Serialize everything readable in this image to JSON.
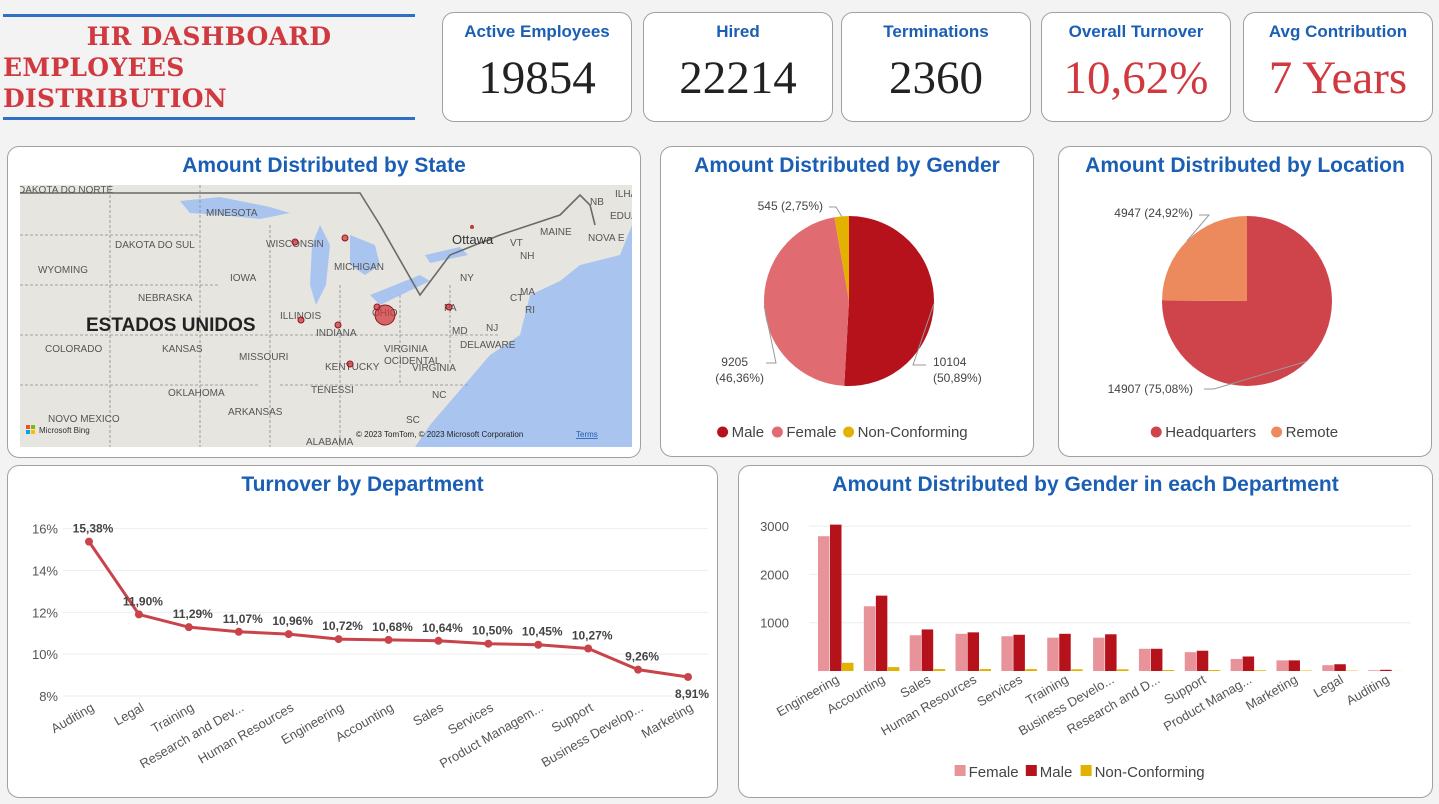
{
  "header": {
    "line1": "HR DASHBOARD",
    "line2": "EMPLOYEES DISTRIBUTION"
  },
  "kpis": [
    {
      "label": "Active Employees",
      "value": "19854"
    },
    {
      "label": "Hired",
      "value": "22214"
    },
    {
      "label": "Terminations",
      "value": "2360"
    },
    {
      "label": "Overall Turnover",
      "value": "10,62%"
    },
    {
      "label": "Avg Contribution",
      "value": "7 Years"
    }
  ],
  "map": {
    "title": "Amount Distributed by State",
    "country_label": "ESTADOS UNIDOS",
    "labels": [
      "DAKOTA DO NORTE",
      "MINESOTA",
      "DAKOTA DO SUL",
      "WISCONSIN",
      "MICHIGAN",
      "Ottawa",
      "VT",
      "MAINE",
      "NB",
      "ILHA",
      "EDUA",
      "NOVA E",
      "NH",
      "NY",
      "MA",
      "CT",
      "RI",
      "WYOMING",
      "IOWA",
      "NEBRASKA",
      "ILLINOIS",
      "INDIANA",
      "OHIO",
      "PA",
      "NJ",
      "MD",
      "DELAWARE",
      "VIRGINIA OCIDENTAL",
      "VIRGINIA",
      "COLORADO",
      "KANSAS",
      "MISSOURI",
      "KENTUCKY",
      "OKLAHOMA",
      "TENESSI",
      "NC",
      "ARKANSAS",
      "SC",
      "NOVO MEXICO",
      "ALABAMA"
    ],
    "attribution": "© 2023 TomTom, © 2023 Microsoft Corporation",
    "terms": "Terms",
    "bing": "Microsoft Bing",
    "colors": {
      "land": "#e7e5e0",
      "water": "#a9c5ef",
      "bubble": "#d0393f"
    }
  },
  "chart_data": [
    {
      "type": "pie",
      "title": "Amount Distributed by Gender",
      "slices": [
        {
          "name": "Male",
          "value": 10104,
          "label": "10104",
          "pct": "(50,89%)",
          "color": "#b5121b"
        },
        {
          "name": "Female",
          "value": 9205,
          "label": "9205",
          "pct": "(46,36%)",
          "color": "#e06c72"
        },
        {
          "name": "Non-Conforming",
          "value": 545,
          "label": "545 (2,75%)",
          "color": "#e3b100"
        }
      ],
      "legend": "bottom"
    },
    {
      "type": "pie",
      "title": "Amount Distributed by Location",
      "slices": [
        {
          "name": "Headquarters",
          "value": 14907,
          "label": "14907 (75,08%)",
          "color": "#cf434b"
        },
        {
          "name": "Remote",
          "value": 4947,
          "label": "4947 (24,92%)",
          "color": "#ec8a5e"
        }
      ],
      "legend": "bottom"
    },
    {
      "type": "line",
      "title": "Turnover by Department",
      "categories": [
        "Auditing",
        "Legal",
        "Training",
        "Research and Dev...",
        "Human Resources",
        "Engineering",
        "Accounting",
        "Sales",
        "Services",
        "Product Managem...",
        "Support",
        "Business Develop...",
        "Marketing"
      ],
      "values": [
        15.38,
        11.9,
        11.29,
        11.07,
        10.96,
        10.72,
        10.68,
        10.64,
        10.5,
        10.45,
        10.27,
        9.26,
        8.91
      ],
      "data_labels": [
        "15,38%",
        "11,90%",
        "11,29%",
        "11,07%",
        "10,96%",
        "10,72%",
        "10,68%",
        "10,64%",
        "10,50%",
        "10,45%",
        "10,27%",
        "9,26%",
        "8,91%"
      ],
      "yticks": [
        8,
        10,
        12,
        14,
        16
      ],
      "ytick_labels": [
        "8%",
        "10%",
        "12%",
        "14%",
        "16%"
      ],
      "ylim": [
        8,
        16.7
      ],
      "color": "#c9434b",
      "grid": true
    },
    {
      "type": "bar",
      "title": "Amount Distributed by Gender in each Department",
      "categories": [
        "Engineering",
        "Accounting",
        "Sales",
        "Human Resources",
        "Services",
        "Training",
        "Business Develo...",
        "Research and D...",
        "Support",
        "Product Manag...",
        "Marketing",
        "Legal",
        "Auditing"
      ],
      "series": [
        {
          "name": "Female",
          "values": [
            2790,
            1340,
            740,
            770,
            720,
            690,
            690,
            460,
            390,
            250,
            220,
            120,
            15
          ],
          "color": "#e8929a"
        },
        {
          "name": "Male",
          "values": [
            3030,
            1560,
            860,
            800,
            750,
            770,
            760,
            460,
            420,
            300,
            220,
            140,
            25
          ],
          "color": "#b5121b"
        },
        {
          "name": "Non-Conforming",
          "values": [
            170,
            80,
            40,
            40,
            40,
            35,
            35,
            20,
            20,
            15,
            10,
            8,
            2
          ],
          "color": "#e3b100"
        }
      ],
      "yticks": [
        1000,
        2000,
        3000
      ],
      "ytick_labels": [
        "1000",
        "2000",
        "3000"
      ],
      "ylim": [
        0,
        3250
      ],
      "grid": true,
      "legend": "bottom"
    }
  ]
}
